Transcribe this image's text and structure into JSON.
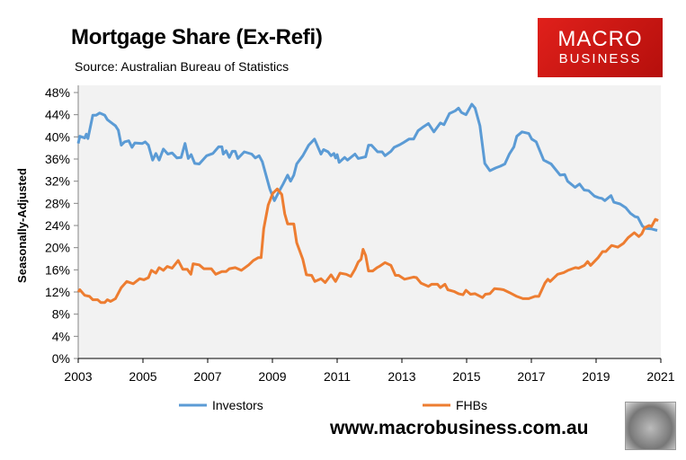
{
  "header": {
    "title": "Mortgage Share (Ex-Refi)",
    "source": "Source: Australian Bureau of Statistics"
  },
  "logo": {
    "line1": "MACRO",
    "line2": "BUSINESS"
  },
  "footer": {
    "url": "www.macrobusiness.com.au"
  },
  "chart_data": {
    "type": "line",
    "title": "Mortgage Share (Ex-Refi)",
    "xlabel": "",
    "ylabel": "Seasonally-Adjusted",
    "xlim": [
      2003,
      2021
    ],
    "ylim": [
      0,
      48
    ],
    "x_ticks": [
      "2003",
      "2005",
      "2007",
      "2009",
      "2011",
      "2013",
      "2015",
      "2017",
      "2019",
      "2021"
    ],
    "y_ticks": [
      "0%",
      "4%",
      "8%",
      "12%",
      "16%",
      "20%",
      "24%",
      "28%",
      "32%",
      "36%",
      "40%",
      "44%",
      "48%"
    ],
    "grid": false,
    "legend": "bottom",
    "series": [
      {
        "name": "Investors",
        "color": "#5b9bd5",
        "points": [
          [
            2003,
            38.8
          ],
          [
            2003.05,
            40.1
          ],
          [
            2003.2,
            39.8
          ],
          [
            2003.25,
            40.5
          ],
          [
            2003.3,
            39.7
          ],
          [
            2003.45,
            43.9
          ],
          [
            2003.55,
            43.9
          ],
          [
            2003.66,
            44.3
          ],
          [
            2003.82,
            43.9
          ],
          [
            2003.9,
            43.1
          ],
          [
            2004.15,
            42
          ],
          [
            2004.24,
            41.2
          ],
          [
            2004.33,
            38.5
          ],
          [
            2004.43,
            39.1
          ],
          [
            2004.56,
            39.3
          ],
          [
            2004.66,
            38.1
          ],
          [
            2004.75,
            38.9
          ],
          [
            2004.98,
            38.8
          ],
          [
            2005.07,
            39.1
          ],
          [
            2005.17,
            38.5
          ],
          [
            2005.3,
            35.8
          ],
          [
            2005.4,
            37
          ],
          [
            2005.5,
            35.8
          ],
          [
            2005.63,
            37.8
          ],
          [
            2005.77,
            36.9
          ],
          [
            2005.9,
            37.1
          ],
          [
            2006.05,
            36.2
          ],
          [
            2006.18,
            36.3
          ],
          [
            2006.3,
            38.8
          ],
          [
            2006.4,
            36.1
          ],
          [
            2006.49,
            36.8
          ],
          [
            2006.6,
            35.2
          ],
          [
            2006.74,
            35.1
          ],
          [
            2006.97,
            36.6
          ],
          [
            2007.16,
            37
          ],
          [
            2007.34,
            38.2
          ],
          [
            2007.44,
            38.2
          ],
          [
            2007.48,
            36.9
          ],
          [
            2007.57,
            37.5
          ],
          [
            2007.67,
            36.3
          ],
          [
            2007.76,
            37.4
          ],
          [
            2007.85,
            37.4
          ],
          [
            2007.93,
            36.1
          ],
          [
            2008.13,
            37.3
          ],
          [
            2008.36,
            36.9
          ],
          [
            2008.47,
            36.2
          ],
          [
            2008.59,
            36.6
          ],
          [
            2008.69,
            35.5
          ],
          [
            2008.92,
            30.6
          ],
          [
            2009.06,
            28.5
          ],
          [
            2009.2,
            30.1
          ],
          [
            2009.33,
            31.5
          ],
          [
            2009.47,
            33.1
          ],
          [
            2009.56,
            32
          ],
          [
            2009.66,
            33.1
          ],
          [
            2009.75,
            35.1
          ],
          [
            2009.94,
            36.6
          ],
          [
            2010.12,
            38.5
          ],
          [
            2010.3,
            39.6
          ],
          [
            2010.5,
            36.9
          ],
          [
            2010.58,
            37.7
          ],
          [
            2010.72,
            37.3
          ],
          [
            2010.81,
            36.6
          ],
          [
            2010.9,
            37
          ],
          [
            2010.95,
            36.2
          ],
          [
            2011,
            36.8
          ],
          [
            2011.06,
            35.4
          ],
          [
            2011.23,
            36.3
          ],
          [
            2011.32,
            35.8
          ],
          [
            2011.55,
            36.9
          ],
          [
            2011.65,
            36.1
          ],
          [
            2011.88,
            36.4
          ],
          [
            2011.97,
            38.5
          ],
          [
            2012.06,
            38.5
          ],
          [
            2012.25,
            37.3
          ],
          [
            2012.39,
            37.3
          ],
          [
            2012.48,
            36.6
          ],
          [
            2012.66,
            37.4
          ],
          [
            2012.76,
            38.1
          ],
          [
            2012.94,
            38.6
          ],
          [
            2013.03,
            38.9
          ],
          [
            2013.22,
            39.6
          ],
          [
            2013.36,
            39.6
          ],
          [
            2013.5,
            41.1
          ],
          [
            2013.64,
            41.7
          ],
          [
            2013.82,
            42.4
          ],
          [
            2013.99,
            40.9
          ],
          [
            2014.19,
            42.5
          ],
          [
            2014.3,
            42.2
          ],
          [
            2014.47,
            44.2
          ],
          [
            2014.65,
            44.7
          ],
          [
            2014.75,
            45.2
          ],
          [
            2014.84,
            44.4
          ],
          [
            2014.98,
            44
          ],
          [
            2015.16,
            45.9
          ],
          [
            2015.26,
            45.2
          ],
          [
            2015.41,
            42
          ],
          [
            2015.56,
            35.2
          ],
          [
            2015.72,
            33.9
          ],
          [
            2015.9,
            34.4
          ],
          [
            2016.04,
            34.7
          ],
          [
            2016.18,
            35.1
          ],
          [
            2016.32,
            36.9
          ],
          [
            2016.46,
            38.2
          ],
          [
            2016.55,
            40.1
          ],
          [
            2016.71,
            40.9
          ],
          [
            2016.92,
            40.6
          ],
          [
            2017.01,
            39.6
          ],
          [
            2017.15,
            39.1
          ],
          [
            2017.38,
            35.8
          ],
          [
            2017.61,
            35.1
          ],
          [
            2017.89,
            33.1
          ],
          [
            2018.03,
            33.2
          ],
          [
            2018.12,
            32
          ],
          [
            2018.35,
            30.9
          ],
          [
            2018.49,
            31.5
          ],
          [
            2018.63,
            30.4
          ],
          [
            2018.77,
            30.3
          ],
          [
            2018.95,
            29.3
          ],
          [
            2019.09,
            29
          ],
          [
            2019.18,
            28.9
          ],
          [
            2019.27,
            28.5
          ],
          [
            2019.46,
            29.4
          ],
          [
            2019.55,
            28.2
          ],
          [
            2019.74,
            27.9
          ],
          [
            2019.92,
            27.2
          ],
          [
            2020.06,
            26.2
          ],
          [
            2020.2,
            25.6
          ],
          [
            2020.29,
            25.5
          ],
          [
            2020.43,
            23.9
          ],
          [
            2020.52,
            23.5
          ],
          [
            2020.7,
            23.4
          ],
          [
            2020.89,
            23.1
          ]
        ]
      },
      {
        "name": "FHBs",
        "color": "#ed7d31",
        "points": [
          [
            2003,
            12
          ],
          [
            2003.05,
            12.4
          ],
          [
            2003.2,
            11.4
          ],
          [
            2003.35,
            11.2
          ],
          [
            2003.45,
            10.6
          ],
          [
            2003.6,
            10.6
          ],
          [
            2003.7,
            10.1
          ],
          [
            2003.82,
            10.1
          ],
          [
            2003.9,
            10.6
          ],
          [
            2004,
            10.3
          ],
          [
            2004.15,
            10.8
          ],
          [
            2004.33,
            12.8
          ],
          [
            2004.5,
            13.9
          ],
          [
            2004.7,
            13.5
          ],
          [
            2004.9,
            14.4
          ],
          [
            2005.03,
            14.2
          ],
          [
            2005.17,
            14.6
          ],
          [
            2005.26,
            15.9
          ],
          [
            2005.4,
            15.4
          ],
          [
            2005.5,
            16.4
          ],
          [
            2005.63,
            15.9
          ],
          [
            2005.75,
            16.6
          ],
          [
            2005.9,
            16.3
          ],
          [
            2006.09,
            17.7
          ],
          [
            2006.23,
            16.1
          ],
          [
            2006.37,
            16.1
          ],
          [
            2006.48,
            15.2
          ],
          [
            2006.55,
            17.1
          ],
          [
            2006.74,
            16.9
          ],
          [
            2006.88,
            16.2
          ],
          [
            2007.11,
            16.2
          ],
          [
            2007.25,
            15.2
          ],
          [
            2007.44,
            15.7
          ],
          [
            2007.57,
            15.7
          ],
          [
            2007.67,
            16.2
          ],
          [
            2007.85,
            16.4
          ],
          [
            2008.04,
            15.9
          ],
          [
            2008.27,
            16.9
          ],
          [
            2008.41,
            17.7
          ],
          [
            2008.56,
            18.2
          ],
          [
            2008.65,
            18.2
          ],
          [
            2008.73,
            23.4
          ],
          [
            2008.87,
            27.7
          ],
          [
            2009.01,
            29.8
          ],
          [
            2009.15,
            30.6
          ],
          [
            2009.29,
            29.6
          ],
          [
            2009.38,
            26.1
          ],
          [
            2009.47,
            24.3
          ],
          [
            2009.66,
            24.3
          ],
          [
            2009.75,
            20.9
          ],
          [
            2009.94,
            17.9
          ],
          [
            2010.05,
            15.1
          ],
          [
            2010.21,
            15
          ],
          [
            2010.31,
            13.9
          ],
          [
            2010.5,
            14.4
          ],
          [
            2010.63,
            13.7
          ],
          [
            2010.81,
            15.1
          ],
          [
            2010.95,
            13.9
          ],
          [
            2011.09,
            15.4
          ],
          [
            2011.28,
            15.2
          ],
          [
            2011.42,
            14.8
          ],
          [
            2011.55,
            16.1
          ],
          [
            2011.65,
            17.4
          ],
          [
            2011.74,
            17.9
          ],
          [
            2011.8,
            19.7
          ],
          [
            2011.88,
            18.6
          ],
          [
            2011.97,
            15.8
          ],
          [
            2012.1,
            15.8
          ],
          [
            2012.23,
            16.4
          ],
          [
            2012.3,
            16.6
          ],
          [
            2012.48,
            17.3
          ],
          [
            2012.66,
            16.8
          ],
          [
            2012.8,
            15
          ],
          [
            2012.9,
            15
          ],
          [
            2013.08,
            14.3
          ],
          [
            2013.36,
            14.7
          ],
          [
            2013.45,
            14.6
          ],
          [
            2013.59,
            13.6
          ],
          [
            2013.82,
            13
          ],
          [
            2013.92,
            13.4
          ],
          [
            2014.1,
            13.4
          ],
          [
            2014.19,
            12.8
          ],
          [
            2014.33,
            13.4
          ],
          [
            2014.42,
            12.4
          ],
          [
            2014.61,
            12.1
          ],
          [
            2014.75,
            11.7
          ],
          [
            2014.89,
            11.5
          ],
          [
            2014.98,
            12.3
          ],
          [
            2015.12,
            11.6
          ],
          [
            2015.26,
            11.7
          ],
          [
            2015.49,
            11
          ],
          [
            2015.58,
            11.6
          ],
          [
            2015.72,
            11.7
          ],
          [
            2015.86,
            12.6
          ],
          [
            2016.04,
            12.5
          ],
          [
            2016.14,
            12.4
          ],
          [
            2016.32,
            11.9
          ],
          [
            2016.55,
            11.2
          ],
          [
            2016.74,
            10.8
          ],
          [
            2016.92,
            10.8
          ],
          [
            2017.11,
            11.2
          ],
          [
            2017.23,
            11.2
          ],
          [
            2017.42,
            13.6
          ],
          [
            2017.51,
            14.3
          ],
          [
            2017.58,
            13.9
          ],
          [
            2017.81,
            15.2
          ],
          [
            2018,
            15.5
          ],
          [
            2018.13,
            15.9
          ],
          [
            2018.36,
            16.4
          ],
          [
            2018.46,
            16.3
          ],
          [
            2018.64,
            16.8
          ],
          [
            2018.74,
            17.5
          ],
          [
            2018.83,
            16.8
          ],
          [
            2019.06,
            18.2
          ],
          [
            2019.2,
            19.3
          ],
          [
            2019.3,
            19.3
          ],
          [
            2019.48,
            20.4
          ],
          [
            2019.67,
            20.1
          ],
          [
            2019.85,
            20.8
          ],
          [
            2019.99,
            21.8
          ],
          [
            2020.18,
            22.7
          ],
          [
            2020.32,
            22
          ],
          [
            2020.41,
            22.5
          ],
          [
            2020.5,
            23.6
          ],
          [
            2020.64,
            24
          ],
          [
            2020.71,
            23.8
          ],
          [
            2020.83,
            25.1
          ],
          [
            2020.92,
            24.9
          ]
        ]
      }
    ]
  }
}
